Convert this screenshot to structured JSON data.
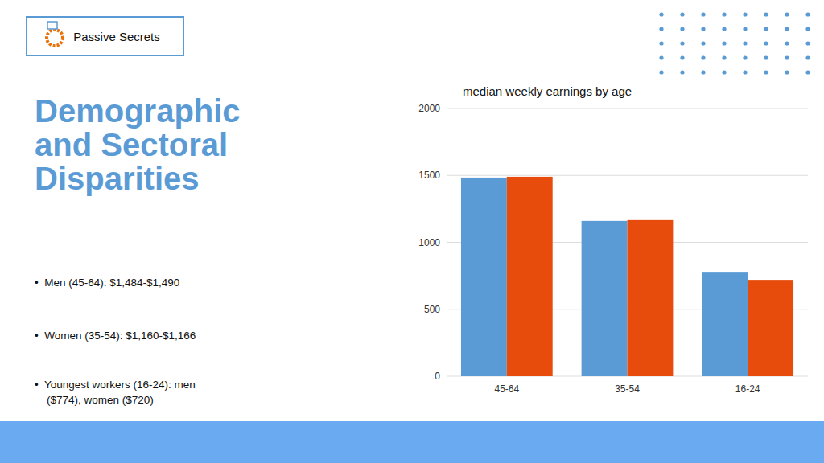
{
  "chart_data": {
    "type": "bar",
    "title": "median weekly earnings by age",
    "categories": [
      "45-64",
      "35-54",
      "16-24"
    ],
    "series": [
      {
        "color": "#5B9BD5",
        "values": [
          1484,
          1160,
          774
        ]
      },
      {
        "color": "#E84C0C",
        "values": [
          1490,
          1166,
          720
        ]
      }
    ],
    "ylim": [
      0,
      2000
    ],
    "yticks": [
      0,
      500,
      1000,
      1500,
      2000
    ],
    "grid": true,
    "annotations": [
      "Demographic\nand Sectoral\nDisparities",
      "•  Men (45-64): $1,484-$1,490",
      "•  Women (35-54): $1,160-$1,166",
      "•  Youngest workers (16-24): men\n    ($774), women ($720)",
      "Passive Secrets"
    ]
  }
}
